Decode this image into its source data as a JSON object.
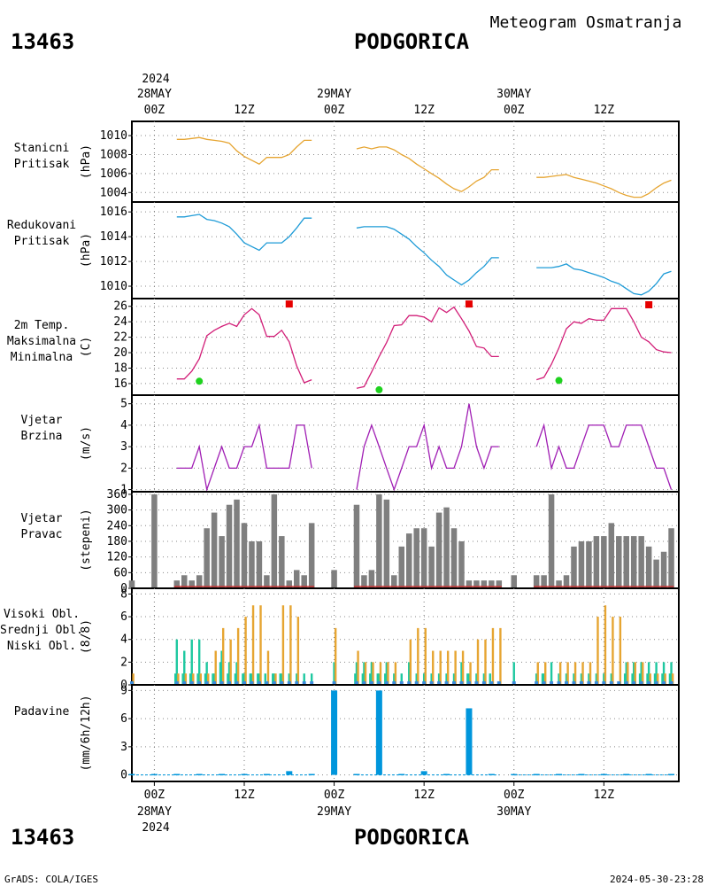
{
  "header": {
    "station_id": "13463",
    "station_name": "PODGORICA",
    "product": "Meteogram Osmatranja"
  },
  "footer": {
    "station_id": "13463",
    "station_name": "PODGORICA",
    "credit": "GrADS: COLA/IGES",
    "timestamp": "2024-05-30-23:28"
  },
  "time_axis": {
    "top_year": "2024",
    "bottom_year": "2024",
    "ticks": [
      {
        "hour": 0,
        "hour_label": "00Z",
        "date_label": "28MAY"
      },
      {
        "hour": 12,
        "hour_label": "12Z",
        "date_label": ""
      },
      {
        "hour": 24,
        "hour_label": "00Z",
        "date_label": "29MAY"
      },
      {
        "hour": 36,
        "hour_label": "12Z",
        "date_label": ""
      },
      {
        "hour": 48,
        "hour_label": "00Z",
        "date_label": "30MAY"
      },
      {
        "hour": 60,
        "hour_label": "12Z",
        "date_label": ""
      }
    ],
    "range_hours": [
      -3,
      70
    ]
  },
  "colors": {
    "station_pressure": "#e6a532",
    "reduced_pressure": "#1e9bd7",
    "temp": "#d21e78",
    "tmax": "#e60000",
    "tmin": "#1ed21e",
    "wind_speed": "#a01eb4",
    "wind_dir_label": "#a01eb4",
    "wind_dir_bar": "#7f7f7f",
    "cloud_high": "#1ec8a0",
    "cloud_mid": "#1ec8a0",
    "cloud_low": "#e6a532",
    "precip": "#0096dc"
  },
  "chart_data": [
    {
      "type": "line",
      "panel": "station_pressure",
      "label_lines": [
        "Stanicni",
        "Pritisak"
      ],
      "unit": "(hPa)",
      "ylim": [
        1003,
        1011.5
      ],
      "yticks": [
        1004,
        1006,
        1008,
        1010
      ],
      "series": [
        {
          "x": [
            3,
            4,
            5,
            6,
            7,
            8,
            9,
            10,
            11,
            12,
            13,
            14,
            15,
            16,
            17,
            18,
            19,
            20,
            21
          ],
          "values": [
            1009.6,
            1009.6,
            1009.7,
            1009.8,
            1009.6,
            1009.5,
            1009.4,
            1009.2,
            1008.4,
            1007.8,
            1007.4,
            1007.0,
            1007.7,
            1007.7,
            1007.7,
            1008.0,
            1008.8,
            1009.5,
            1009.5
          ]
        },
        {
          "x": [
            27,
            28,
            29,
            30,
            31,
            32,
            33,
            34,
            35,
            36,
            37,
            38,
            39,
            40,
            41,
            42,
            43,
            44,
            45,
            46
          ],
          "values": [
            1008.6,
            1008.8,
            1008.6,
            1008.8,
            1008.8,
            1008.5,
            1008.0,
            1007.6,
            1007.0,
            1006.5,
            1006.0,
            1005.5,
            1004.9,
            1004.4,
            1004.1,
            1004.6,
            1005.2,
            1005.6,
            1006.4,
            1006.4
          ]
        },
        {
          "x": [
            51,
            52,
            53,
            54,
            55,
            56,
            57,
            58,
            59,
            60,
            61,
            62,
            63,
            64,
            65,
            66,
            67,
            68,
            69
          ],
          "values": [
            1005.6,
            1005.6,
            1005.7,
            1005.8,
            1005.9,
            1005.6,
            1005.4,
            1005.2,
            1005.0,
            1004.7,
            1004.4,
            1004.0,
            1003.7,
            1003.5,
            1003.5,
            1003.9,
            1004.5,
            1005.0,
            1005.3
          ]
        }
      ]
    },
    {
      "type": "line",
      "panel": "reduced_pressure",
      "label_lines": [
        "Redukovani",
        "Pritisak"
      ],
      "unit": "(hPa)",
      "ylim": [
        1009,
        1016.8
      ],
      "yticks": [
        1010,
        1012,
        1014,
        1016
      ],
      "series": [
        {
          "x": [
            3,
            4,
            5,
            6,
            7,
            8,
            9,
            10,
            11,
            12,
            13,
            14,
            15,
            16,
            17,
            18,
            19,
            20,
            21
          ],
          "values": [
            1015.6,
            1015.6,
            1015.7,
            1015.8,
            1015.4,
            1015.3,
            1015.1,
            1014.8,
            1014.2,
            1013.5,
            1013.2,
            1012.9,
            1013.5,
            1013.5,
            1013.5,
            1014.0,
            1014.7,
            1015.5,
            1015.5
          ]
        },
        {
          "x": [
            27,
            28,
            29,
            30,
            31,
            32,
            33,
            34,
            35,
            36,
            37,
            38,
            39,
            40,
            41,
            42,
            43,
            44,
            45,
            46
          ],
          "values": [
            1014.7,
            1014.8,
            1014.8,
            1014.8,
            1014.8,
            1014.6,
            1014.2,
            1013.8,
            1013.2,
            1012.7,
            1012.1,
            1011.6,
            1010.9,
            1010.5,
            1010.1,
            1010.5,
            1011.1,
            1011.6,
            1012.3,
            1012.3
          ]
        },
        {
          "x": [
            51,
            52,
            53,
            54,
            55,
            56,
            57,
            58,
            59,
            60,
            61,
            62,
            63,
            64,
            65,
            66,
            67,
            68,
            69
          ],
          "values": [
            1011.5,
            1011.5,
            1011.5,
            1011.6,
            1011.8,
            1011.4,
            1011.3,
            1011.1,
            1010.9,
            1010.7,
            1010.4,
            1010.2,
            1009.8,
            1009.4,
            1009.3,
            1009.6,
            1010.2,
            1011.0,
            1011.2
          ]
        }
      ]
    },
    {
      "type": "line",
      "panel": "temperature",
      "label_lines": [
        "2m Temp.",
        "Maksimalna",
        "Minimalna"
      ],
      "unit": "(C)",
      "ylim": [
        14.5,
        27
      ],
      "yticks": [
        16,
        18,
        20,
        22,
        24,
        26
      ],
      "series": [
        {
          "x": [
            3,
            4,
            5,
            6,
            7,
            8,
            9,
            10,
            11,
            12,
            13,
            14,
            15,
            16,
            17,
            18,
            19,
            20,
            21
          ],
          "values": [
            16.6,
            16.6,
            17.6,
            19.2,
            22.2,
            22.9,
            23.4,
            23.8,
            23.4,
            24.9,
            25.7,
            24.9,
            22.1,
            22.1,
            22.9,
            21.4,
            18.3,
            16.1,
            16.5
          ]
        },
        {
          "x": [
            27,
            28,
            29,
            30,
            31,
            32,
            33,
            34,
            35,
            36,
            37,
            38,
            39,
            40,
            41,
            42,
            43,
            44,
            45,
            46
          ],
          "values": [
            15.4,
            15.6,
            17.5,
            19.5,
            21.3,
            23.5,
            23.6,
            24.8,
            24.8,
            24.6,
            24.0,
            25.8,
            25.2,
            25.9,
            24.4,
            22.8,
            20.8,
            20.6,
            19.5,
            19.5
          ]
        },
        {
          "x": [
            51,
            52,
            53,
            54,
            55,
            56,
            57,
            58,
            59,
            60,
            61,
            62,
            63,
            64,
            65,
            66,
            67,
            68,
            69
          ],
          "values": [
            16.5,
            16.8,
            18.5,
            20.6,
            23.1,
            24.0,
            23.8,
            24.4,
            24.2,
            24.2,
            25.7,
            25.7,
            25.7,
            24.0,
            22.0,
            21.4,
            20.4,
            20.1,
            20.0
          ]
        }
      ],
      "tmax": [
        {
          "x": 18,
          "value": 26.3
        },
        {
          "x": 42,
          "value": 26.3
        },
        {
          "x": 66,
          "value": 26.2
        }
      ],
      "tmin": [
        {
          "x": 6,
          "value": 16.3
        },
        {
          "x": 30,
          "value": 15.2
        },
        {
          "x": 54,
          "value": 16.4
        }
      ]
    },
    {
      "type": "line",
      "panel": "wind_speed",
      "label_lines": [
        "Vjetar",
        "Brzina"
      ],
      "unit": "(m/s)",
      "ylim": [
        0.9,
        5.4
      ],
      "yticks": [
        1,
        2,
        3,
        4,
        5
      ],
      "series": [
        {
          "x": [
            3,
            4,
            5,
            6,
            7,
            8,
            9,
            10,
            11,
            12,
            13,
            14,
            15,
            16,
            17,
            18,
            19,
            20,
            21
          ],
          "values": [
            2,
            2,
            2,
            3,
            1,
            2,
            3,
            2,
            2,
            3,
            3,
            4,
            2,
            2,
            2,
            2,
            4,
            4,
            2
          ]
        },
        {
          "x": [
            27,
            28,
            29,
            30,
            31,
            32,
            33,
            34,
            35,
            36,
            37,
            38,
            39,
            40,
            41,
            42,
            43,
            44,
            45,
            46
          ],
          "values": [
            1,
            3,
            4,
            3,
            2,
            1,
            2,
            3,
            3,
            4,
            2,
            3,
            2,
            2,
            3,
            5,
            3,
            2,
            3,
            3
          ]
        },
        {
          "x": [
            51,
            52,
            53,
            54,
            55,
            56,
            57,
            58,
            59,
            60,
            61,
            62,
            63,
            64,
            65,
            66,
            67,
            68,
            69
          ],
          "values": [
            3,
            4,
            2,
            3,
            2,
            2,
            3,
            4,
            4,
            4,
            3,
            3,
            4,
            4,
            4,
            3,
            2,
            2,
            1
          ]
        }
      ]
    },
    {
      "type": "bar",
      "panel": "wind_direction",
      "label_lines": [
        "Vjetar",
        "Pravac"
      ],
      "unit": "(stepeni)",
      "ylim": [
        0,
        370
      ],
      "yticks": [
        0,
        60,
        120,
        180,
        240,
        300,
        360
      ],
      "x": [
        -3,
        0,
        3,
        4,
        5,
        6,
        7,
        8,
        9,
        10,
        11,
        12,
        13,
        14,
        15,
        16,
        17,
        18,
        19,
        20,
        21,
        24,
        27,
        28,
        29,
        30,
        31,
        32,
        33,
        34,
        35,
        36,
        37,
        38,
        39,
        40,
        41,
        42,
        43,
        44,
        45,
        46,
        48,
        51,
        52,
        53,
        54,
        55,
        56,
        57,
        58,
        59,
        60,
        61,
        62,
        63,
        64,
        65,
        66,
        67,
        68,
        69
      ],
      "values": [
        30,
        360,
        30,
        50,
        30,
        50,
        230,
        290,
        200,
        320,
        340,
        250,
        180,
        180,
        50,
        360,
        200,
        30,
        70,
        50,
        250,
        70,
        320,
        50,
        70,
        360,
        340,
        50,
        160,
        210,
        230,
        230,
        160,
        290,
        310,
        230,
        180,
        30,
        30,
        30,
        30,
        30,
        50,
        50,
        50,
        360,
        30,
        50,
        160,
        180,
        180,
        200,
        200,
        250,
        200,
        200,
        200,
        200,
        160,
        110,
        140,
        230
      ]
    },
    {
      "type": "bar",
      "panel": "cloud_cover",
      "label_lines": [
        "Visoki Obl.",
        "Srednji Obl.",
        "Niski Obl."
      ],
      "unit": "(8/8)",
      "ylim": [
        0,
        8.5
      ],
      "yticks": [
        0,
        2,
        4,
        6,
        8
      ],
      "x": [
        -3,
        3,
        4,
        5,
        6,
        7,
        8,
        9,
        10,
        11,
        12,
        13,
        14,
        15,
        16,
        17,
        18,
        19,
        20,
        21,
        24,
        27,
        28,
        29,
        30,
        31,
        32,
        33,
        34,
        35,
        36,
        37,
        38,
        39,
        40,
        41,
        42,
        43,
        44,
        45,
        46,
        48,
        51,
        52,
        53,
        54,
        55,
        56,
        57,
        58,
        59,
        60,
        61,
        62,
        63,
        64,
        65,
        66,
        67,
        68,
        69
      ],
      "series": [
        {
          "name": "Visoki Obl.",
          "values": [
            0,
            1,
            1,
            1,
            1,
            1,
            1,
            2,
            1,
            1,
            1,
            1,
            1,
            1,
            1,
            1,
            0,
            0,
            0,
            0,
            0,
            1,
            1,
            1,
            1,
            1,
            0,
            0,
            0,
            0,
            0,
            0,
            0,
            0,
            0,
            0,
            1,
            0,
            0,
            1,
            0,
            0,
            0,
            1,
            0,
            0,
            0,
            0,
            0,
            0,
            0,
            0,
            0,
            0,
            1,
            1,
            1,
            1,
            1,
            1,
            1
          ]
        },
        {
          "name": "Srednji Obl.",
          "values": [
            0,
            4,
            3,
            4,
            4,
            2,
            1,
            3,
            2,
            2,
            1,
            1,
            1,
            0,
            1,
            1,
            1,
            1,
            1,
            1,
            2,
            2,
            2,
            2,
            1,
            2,
            1,
            1,
            2,
            1,
            1,
            1,
            1,
            1,
            1,
            2,
            1,
            1,
            1,
            0,
            0,
            2,
            1,
            1,
            2,
            1,
            1,
            1,
            1,
            1,
            1,
            1,
            1,
            0,
            2,
            2,
            2,
            2,
            2,
            2,
            2
          ]
        },
        {
          "name": "Niski Obl.",
          "values": [
            1,
            1,
            1,
            1,
            1,
            1,
            3,
            5,
            4,
            5,
            6,
            7,
            7,
            3,
            1,
            7,
            7,
            6,
            0,
            0,
            5,
            3,
            2,
            2,
            2,
            2,
            2,
            0,
            4,
            5,
            5,
            3,
            3,
            3,
            3,
            3,
            2,
            4,
            4,
            5,
            5,
            0,
            2,
            2,
            0,
            2,
            2,
            2,
            2,
            2,
            6,
            7,
            6,
            6,
            2,
            2,
            2,
            1,
            1,
            1,
            1
          ]
        }
      ]
    },
    {
      "type": "bar",
      "panel": "precipitation",
      "label_lines": [
        "Padavine"
      ],
      "unit": "(mm/6h/12h)",
      "ylim": [
        -0.7,
        9.6
      ],
      "yticks": [
        0,
        3,
        6,
        9
      ],
      "x": [
        -3,
        0,
        3,
        6,
        9,
        12,
        15,
        18,
        21,
        24,
        27,
        30,
        33,
        36,
        39,
        42,
        45,
        48,
        51,
        54,
        57,
        60,
        63,
        66,
        69
      ],
      "values": [
        0.1,
        0,
        0.1,
        0.1,
        0.1,
        0.1,
        0.1,
        0.4,
        0.1,
        9,
        0.1,
        9,
        0.1,
        0.4,
        0.1,
        7.1,
        0.1,
        0,
        0.1,
        0.1,
        0.1,
        0.1,
        0.1,
        0.1,
        0.1
      ]
    }
  ]
}
